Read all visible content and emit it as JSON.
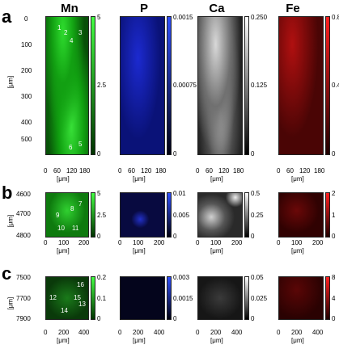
{
  "panel_labels": [
    "a",
    "b",
    "c"
  ],
  "elements": [
    "Mn",
    "P",
    "Ca",
    "Fe"
  ],
  "axis_unit": "[μm]",
  "colors": {
    "Mn": "#22c422",
    "P": "#1a2bd8",
    "Ca": "#ffffff",
    "Fe": "#e01010"
  },
  "rows": {
    "a": {
      "y_ticks": [
        "0",
        "100",
        "200",
        "300",
        "400",
        "500"
      ],
      "x_ticks_mn": [
        "0",
        "60",
        "120",
        "180"
      ],
      "x_ticks": [
        "0",
        "60",
        "120",
        "180"
      ],
      "cbar": {
        "Mn": {
          "max": "5",
          "mid": "2.5",
          "min": "0"
        },
        "P": {
          "max": "0.0015",
          "mid": "0.00075",
          "min": "0"
        },
        "Ca": {
          "max": "0.250",
          "mid": "0.125",
          "min": "0"
        },
        "Fe": {
          "max": "0.8",
          "mid": "0.4",
          "min": "0"
        }
      },
      "markers": [
        "1",
        "2",
        "3",
        "4",
        "5",
        "6"
      ]
    },
    "b": {
      "y_ticks": [
        "4600",
        "4700",
        "4800"
      ],
      "x_ticks": [
        "0",
        "100",
        "200"
      ],
      "cbar": {
        "Mn": {
          "max": "5",
          "mid": "2.5",
          "min": "0"
        },
        "P": {
          "max": "0.01",
          "mid": "0.005",
          "min": "0"
        },
        "Ca": {
          "max": "0.5",
          "mid": "0.25",
          "min": "0"
        },
        "Fe": {
          "max": "2",
          "mid": "1",
          "min": "0"
        }
      },
      "markers": [
        "7",
        "8",
        "9",
        "10",
        "11"
      ]
    },
    "c": {
      "y_ticks": [
        "7500",
        "7700",
        "7900"
      ],
      "x_ticks": [
        "0",
        "200",
        "400"
      ],
      "cbar": {
        "Mn": {
          "max": "0.2",
          "mid": "0.1",
          "min": "0"
        },
        "P": {
          "max": "0.003",
          "mid": "0.0015",
          "min": "0"
        },
        "Ca": {
          "max": "0.05",
          "mid": "0.025",
          "min": "0"
        },
        "Fe": {
          "max": "8",
          "mid": "4",
          "min": "0"
        }
      },
      "markers": [
        "12",
        "13",
        "14",
        "15",
        "16"
      ]
    }
  }
}
